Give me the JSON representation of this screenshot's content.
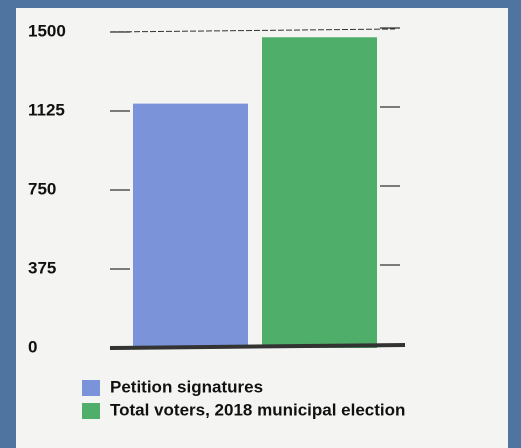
{
  "chart_data": {
    "type": "bar",
    "categories": [
      null
    ],
    "series": [
      {
        "name": "Petition signatures",
        "color": "#7b93d8",
        "values": [
          1160
        ]
      },
      {
        "name": "Total voters, 2018 municipal election",
        "color": "#4fae6a",
        "values": [
          1475
        ]
      }
    ],
    "ylim": [
      0,
      1500
    ],
    "yticks": [
      0,
      375,
      750,
      1125,
      1500
    ],
    "legend": "bottom"
  }
}
